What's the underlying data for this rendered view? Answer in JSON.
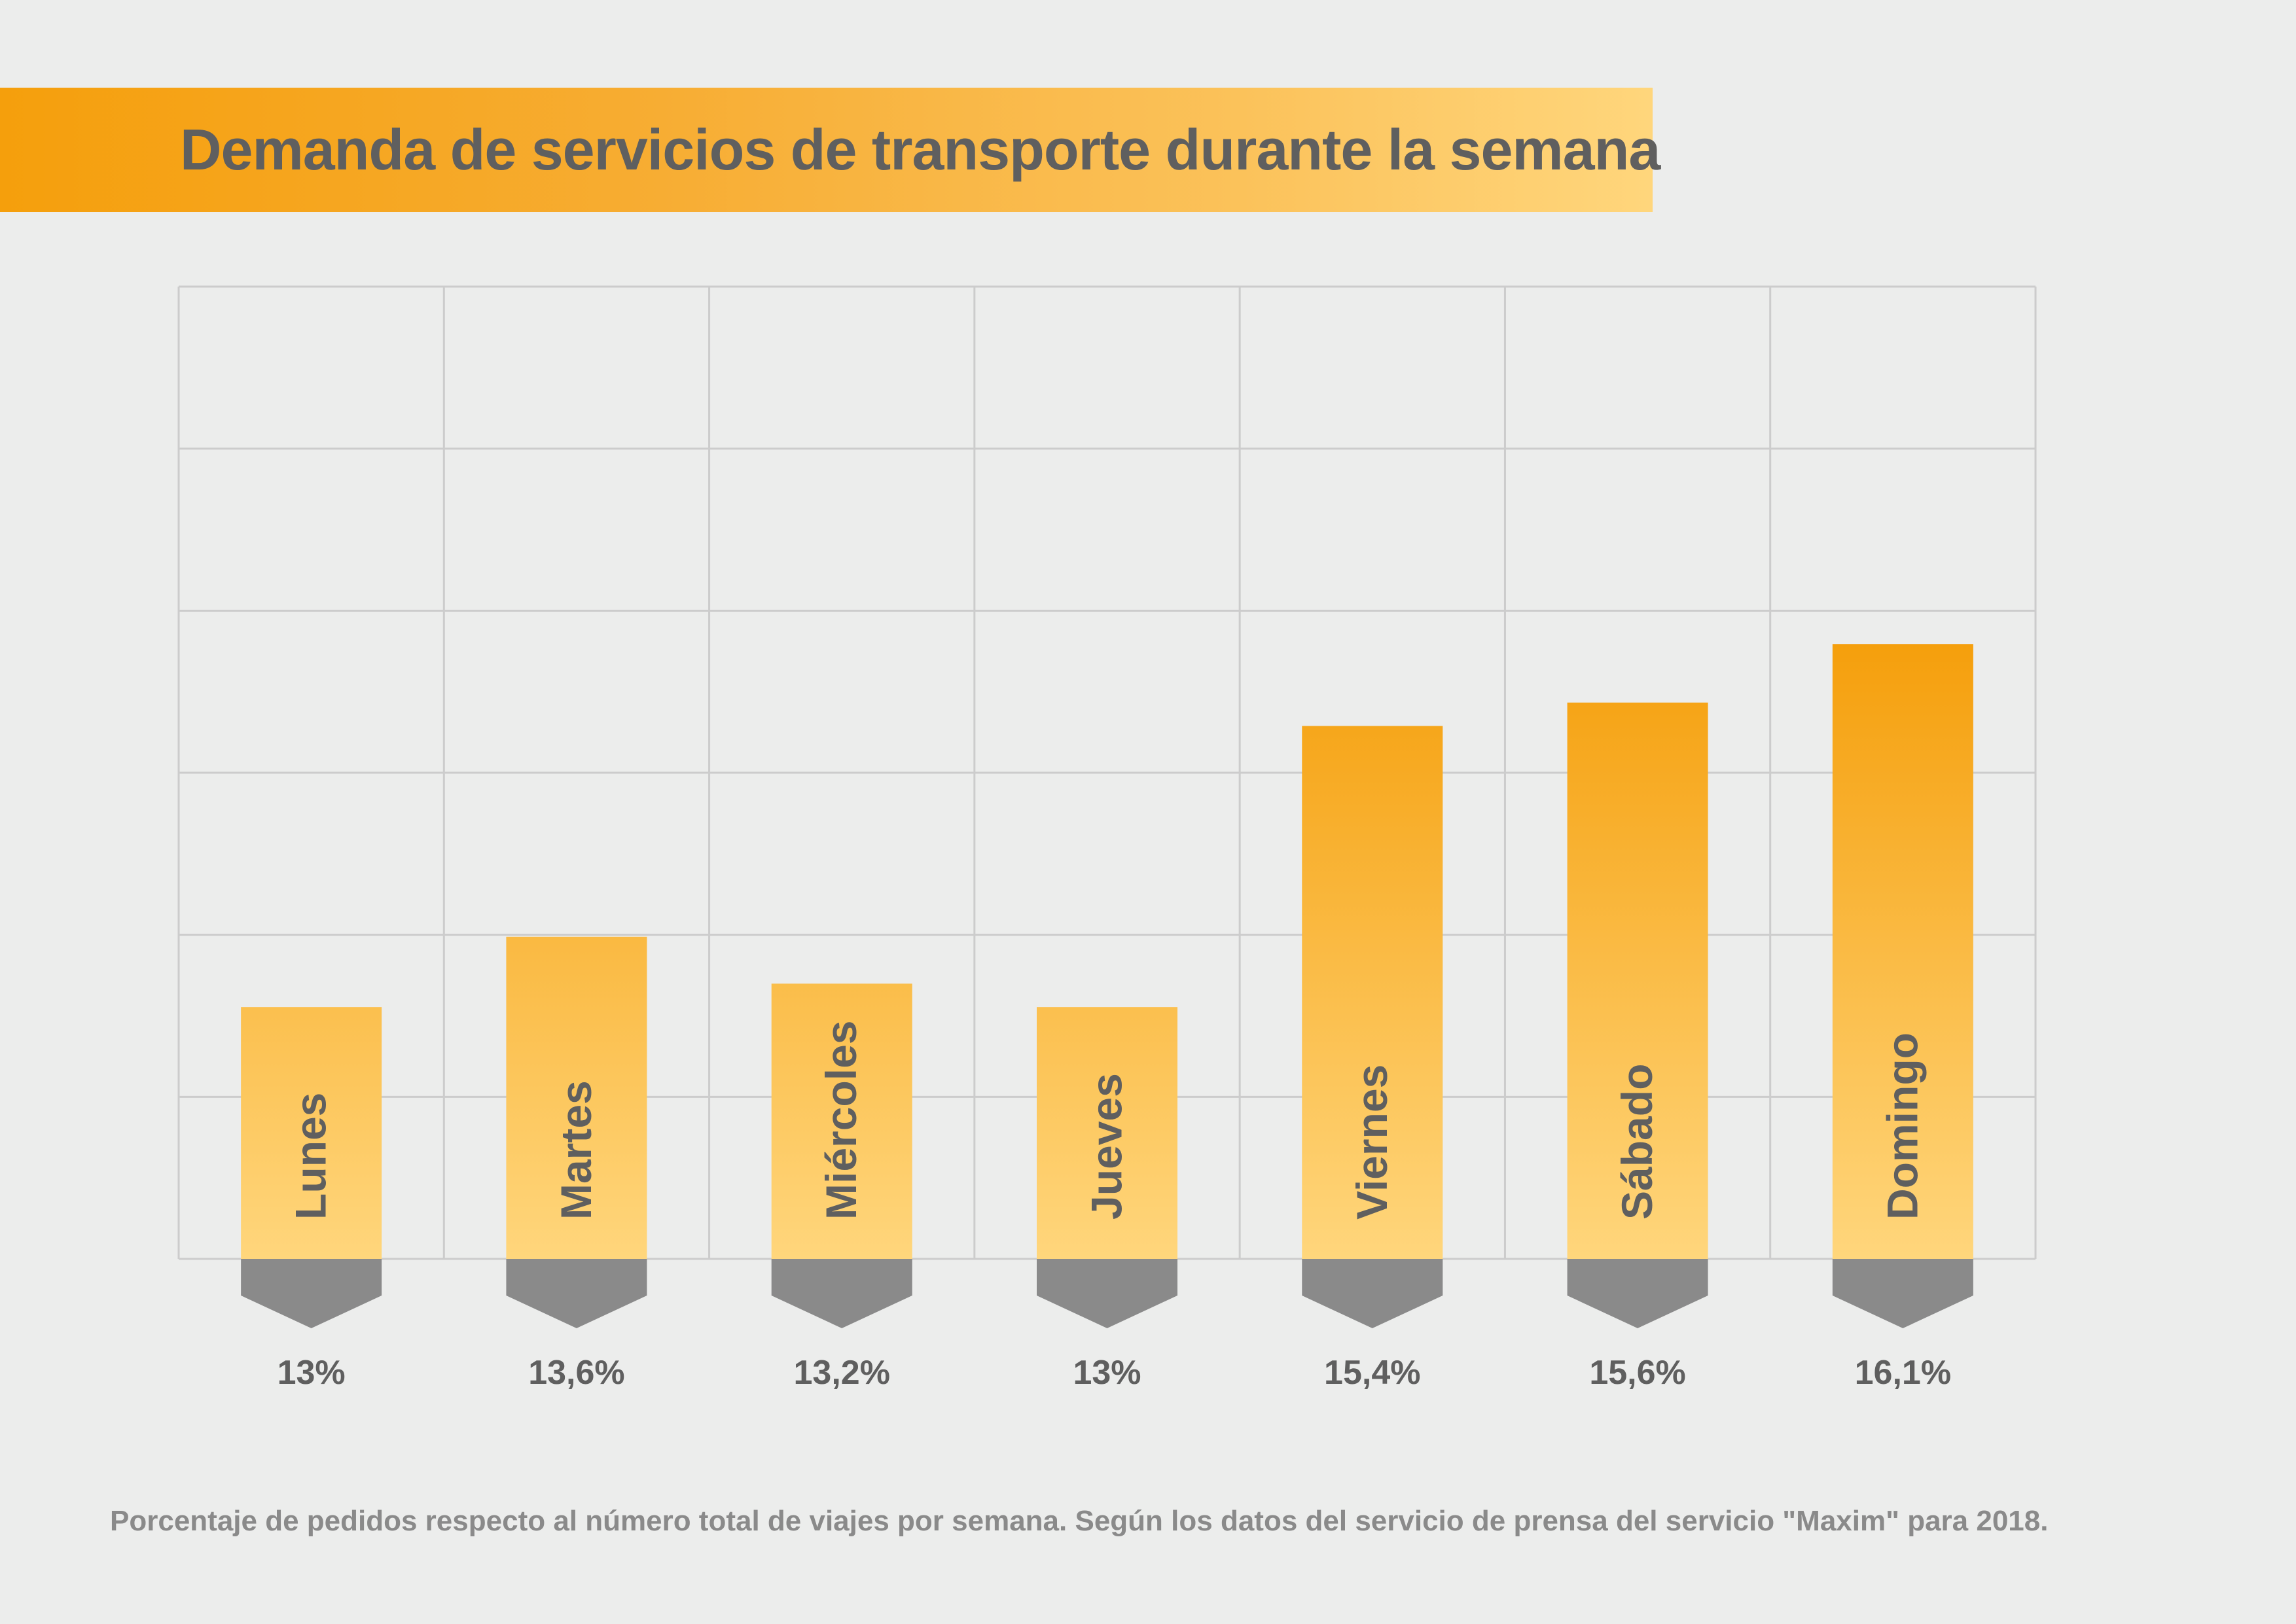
{
  "title": "Demanda de servicios de transporte durante la semana",
  "footer": "Porcentaje de pedidos respecto al número total de viajes por semana. Según los datos del servicio de prensa del servicio \"Maxim\" para 2018.",
  "colors": {
    "bar_top": "#f59f0c",
    "bar_bottom": "#ffd67c",
    "pointer": "#8a8a8a",
    "text": "#5f5f5f",
    "grid": "#cccccc",
    "background": "#ecedec"
  },
  "chart_data": {
    "type": "bar",
    "title": "Demanda de servicios de transporte durante la semana",
    "categories": [
      "Lunes",
      "Martes",
      "Miércoles",
      "Jueves",
      "Viernes",
      "Sábado",
      "Domingo"
    ],
    "values": [
      13,
      13.6,
      13.2,
      13,
      15.4,
      15.6,
      16.1
    ],
    "value_labels": [
      "13%",
      "13,6%",
      "13,2%",
      "13%",
      "15,4%",
      "15,6%",
      "16,1%"
    ],
    "unit": "%",
    "grid": true,
    "legend": "none"
  }
}
